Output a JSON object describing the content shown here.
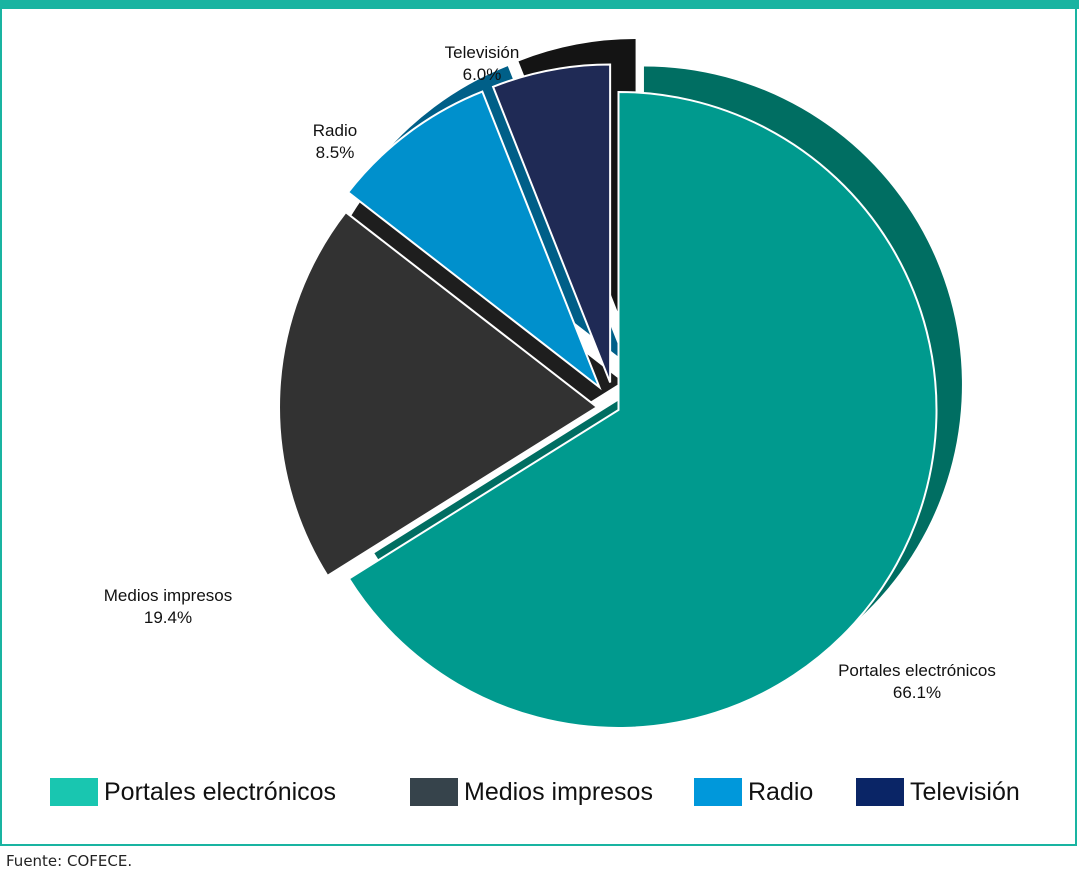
{
  "chart_data": {
    "type": "pie",
    "title": "",
    "slices": [
      {
        "label": "Portales electrónicos",
        "value": 66.1,
        "value_text": "66.1%",
        "color": "#009a8e",
        "side_color": "#006e62"
      },
      {
        "label": "Medios impresos",
        "value": 19.4,
        "value_text": "19.4%",
        "color": "#323232",
        "side_color": "#1e1e1e"
      },
      {
        "label": "Radio",
        "value": 8.5,
        "value_text": "8.5%",
        "color": "#0090cc",
        "side_color": "#005f88"
      },
      {
        "label": "Televisión",
        "value": 6.0,
        "value_text": "6.0%",
        "color": "#1f2a55",
        "side_color": "#141414"
      }
    ],
    "legend": {
      "position": "bottom",
      "items": [
        {
          "label": "Portales electrónicos",
          "color": "#19c6b0"
        },
        {
          "label": "Medios impresos",
          "color": "#36434b"
        },
        {
          "label": "Radio",
          "color": "#0098db"
        },
        {
          "label": "Televisión",
          "color": "#0a2566"
        }
      ]
    }
  },
  "source": "Fuente: COFECE.",
  "colors": {
    "accent": "#19b4a1"
  }
}
